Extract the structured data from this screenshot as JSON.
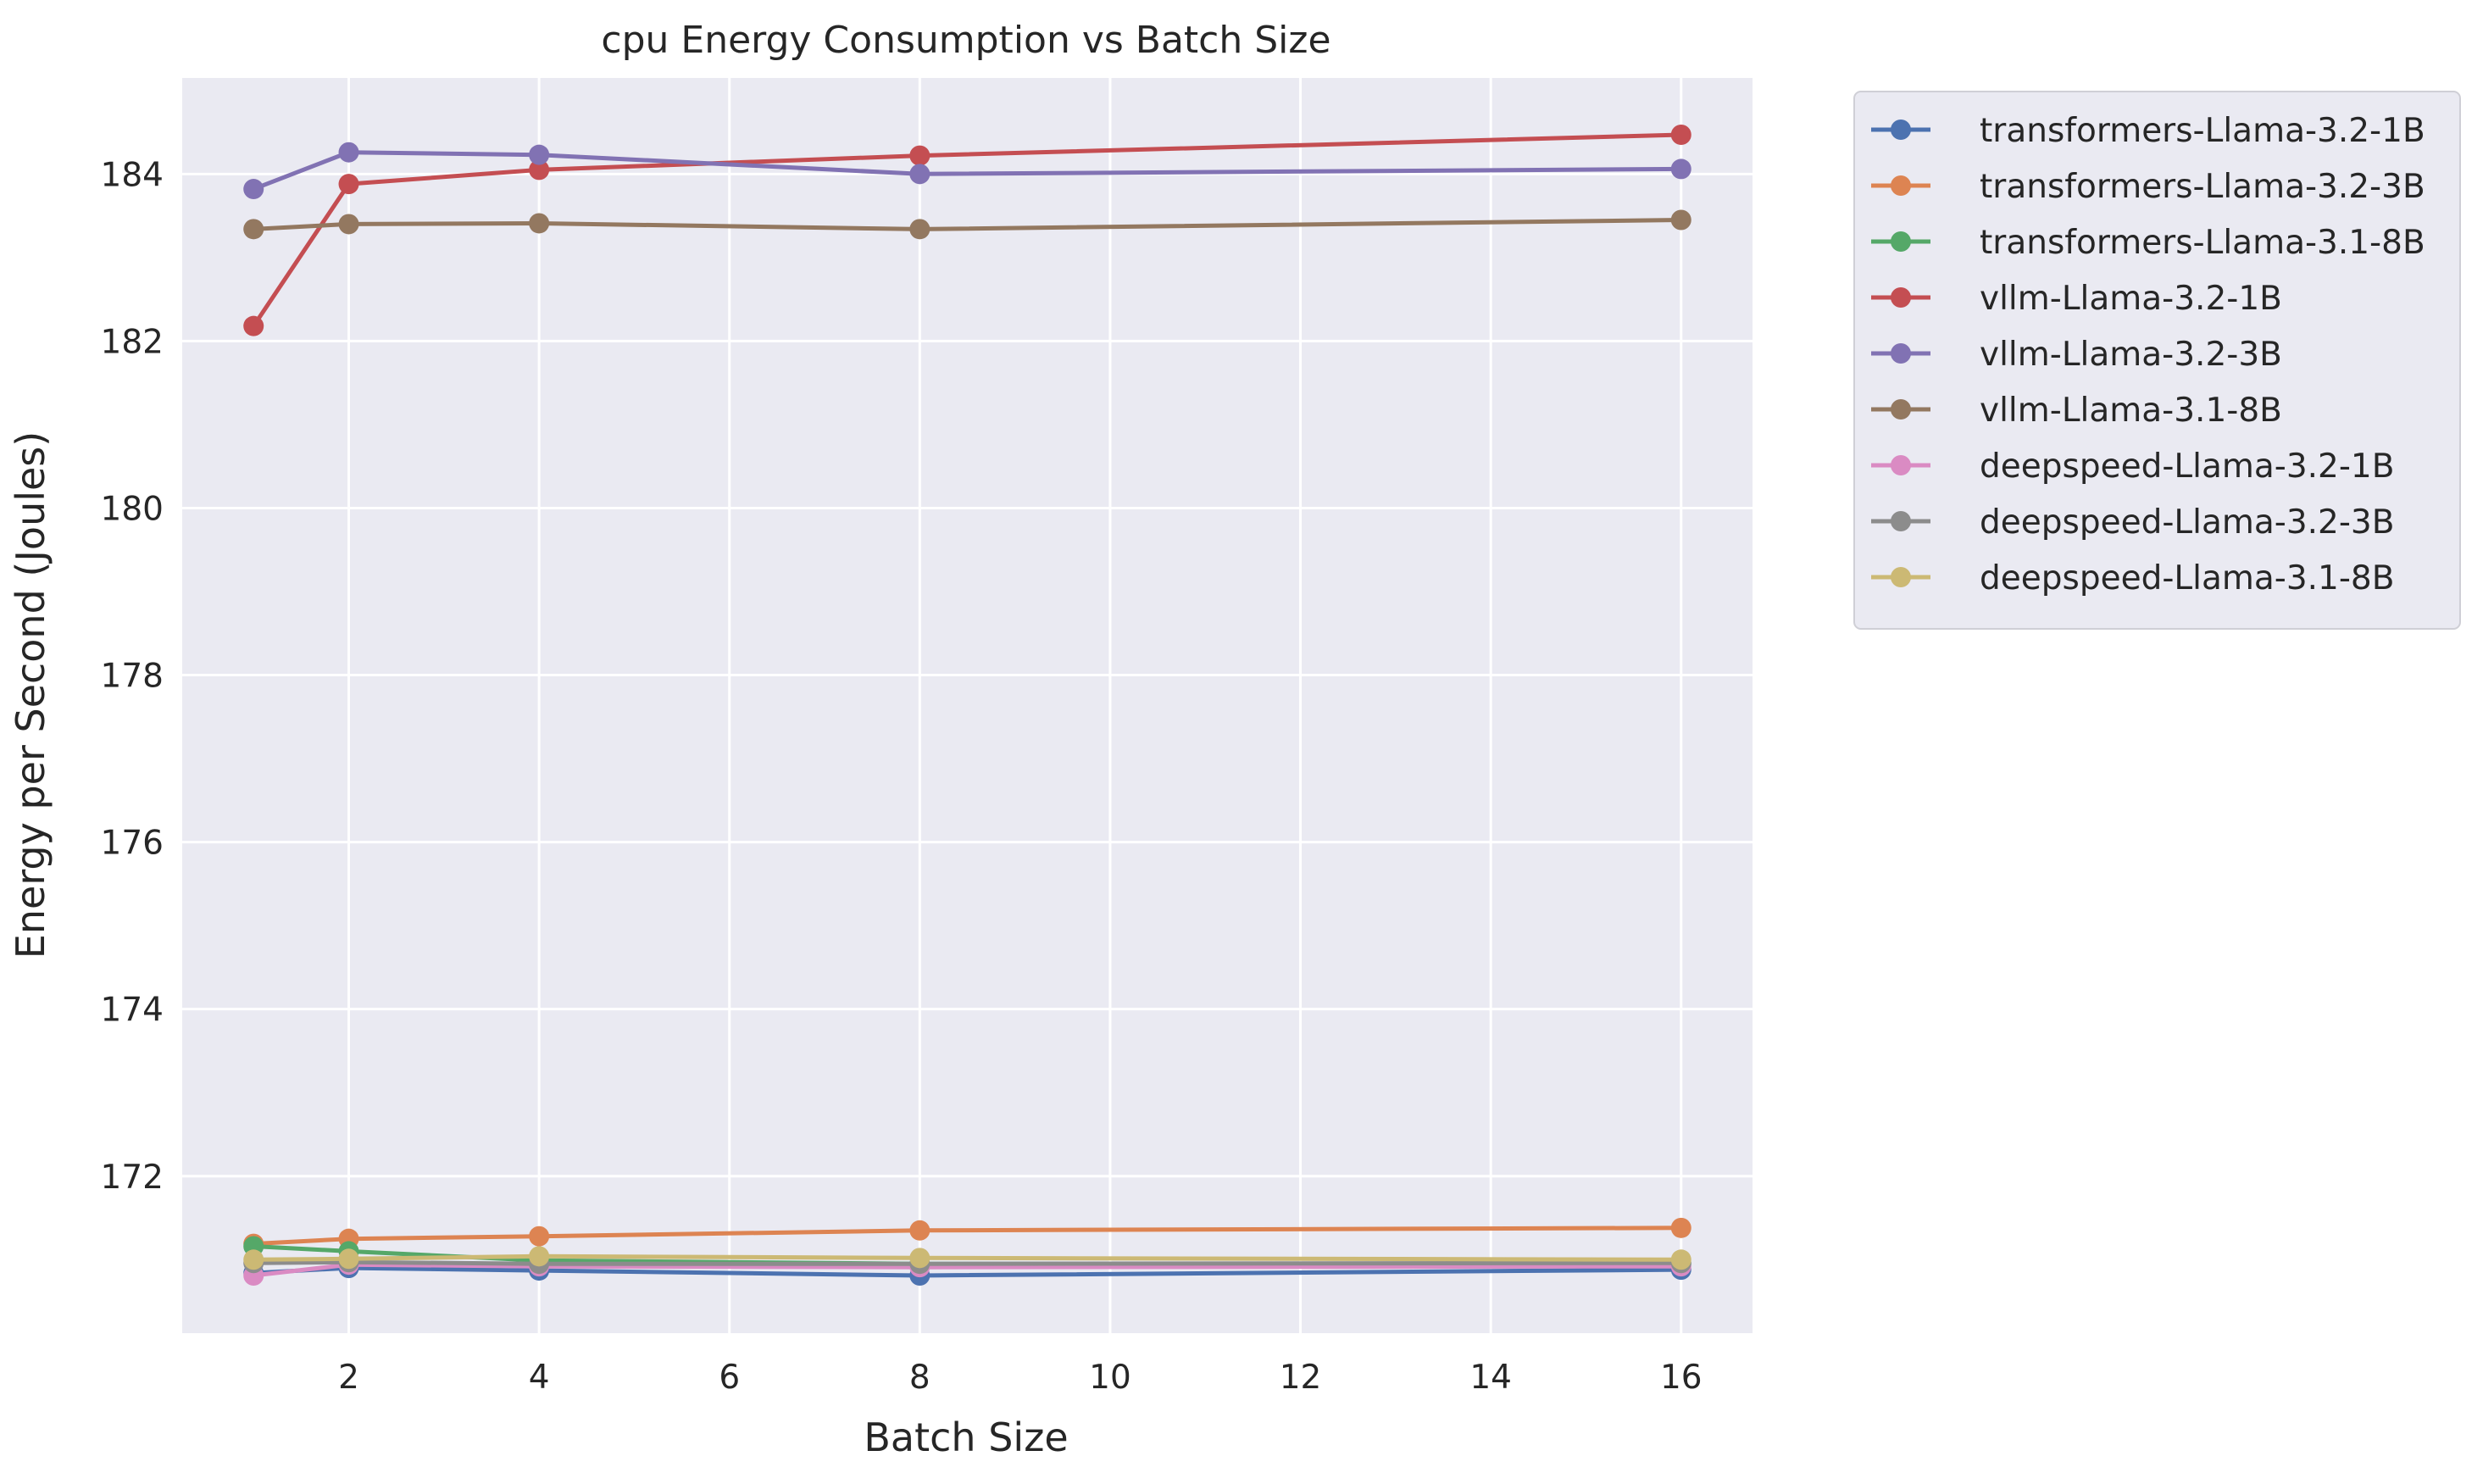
{
  "chart_data": {
    "type": "line",
    "title": "cpu Energy Consumption vs Batch Size",
    "xlabel": "Batch Size",
    "ylabel": "Energy per Second (Joules)",
    "xlim": [
      0.25,
      16.75
    ],
    "ylim": [
      170.12,
      185.15
    ],
    "xticks": [
      2,
      4,
      6,
      8,
      10,
      12,
      14,
      16
    ],
    "yticks": [
      172,
      174,
      176,
      178,
      180,
      182,
      184
    ],
    "grid": true,
    "legend_position": "outside-right",
    "x": [
      1,
      2,
      4,
      8,
      16
    ],
    "series": [
      {
        "name": "transformers-Llama-3.2-1B",
        "color": "#4c72b0",
        "values": [
          170.84,
          170.9,
          170.87,
          170.81,
          170.88
        ]
      },
      {
        "name": "transformers-Llama-3.2-3B",
        "color": "#dd8452",
        "values": [
          171.19,
          171.25,
          171.28,
          171.35,
          171.38
        ]
      },
      {
        "name": "transformers-Llama-3.1-8B",
        "color": "#55a868",
        "values": [
          171.16,
          171.1,
          170.99,
          170.95,
          170.95
        ]
      },
      {
        "name": "vllm-Llama-3.2-1B",
        "color": "#c44e52",
        "values": [
          182.18,
          183.88,
          184.05,
          184.22,
          184.47
        ]
      },
      {
        "name": "vllm-Llama-3.2-3B",
        "color": "#8172b3",
        "values": [
          183.82,
          184.26,
          184.23,
          184.0,
          184.06
        ]
      },
      {
        "name": "vllm-Llama-3.1-8B",
        "color": "#937860",
        "values": [
          183.34,
          183.4,
          183.41,
          183.34,
          183.45
        ]
      },
      {
        "name": "deepspeed-Llama-3.2-1B",
        "color": "#da8bc3",
        "values": [
          170.81,
          170.94,
          170.92,
          170.91,
          170.92
        ]
      },
      {
        "name": "deepspeed-Llama-3.2-3B",
        "color": "#8c8c8c",
        "values": [
          170.96,
          170.97,
          170.95,
          170.95,
          170.96
        ]
      },
      {
        "name": "deepspeed-Llama-3.1-8B",
        "color": "#ccb974",
        "values": [
          171.0,
          171.01,
          171.04,
          171.02,
          171.0
        ]
      }
    ]
  }
}
